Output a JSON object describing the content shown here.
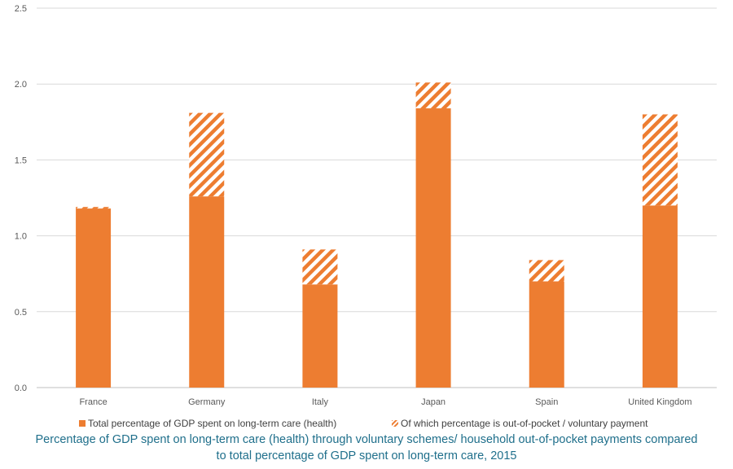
{
  "chart_data": {
    "type": "bar",
    "stacked": true,
    "categories": [
      "France",
      "Germany",
      "Italy",
      "Japan",
      "Spain",
      "United Kingdom"
    ],
    "series": [
      {
        "name": "Total percentage of GDP spent on long-term care (health)",
        "values": [
          1.18,
          1.26,
          0.68,
          1.84,
          0.7,
          1.2
        ],
        "color": "#ed7d31",
        "pattern": "solid"
      },
      {
        "name": "Of which percentage is out-of-pocket / voluntary payment",
        "values": [
          0.01,
          0.55,
          0.23,
          0.17,
          0.14,
          0.6
        ],
        "color": "#ed7d31",
        "pattern": "diagonal-stripes"
      }
    ],
    "y_ticks": [
      "0.0",
      "0.5",
      "1.0",
      "1.5",
      "2.0",
      "2.5"
    ],
    "ylim": [
      0,
      2.5
    ],
    "grid": true,
    "legend_position": "bottom",
    "caption_lines": [
      "Percentage of GDP spent on long-term care (health) through voluntary schemes/ household out-of-pocket payments compared",
      "to total percentage of GDP spent on long-term care, 2015"
    ]
  }
}
